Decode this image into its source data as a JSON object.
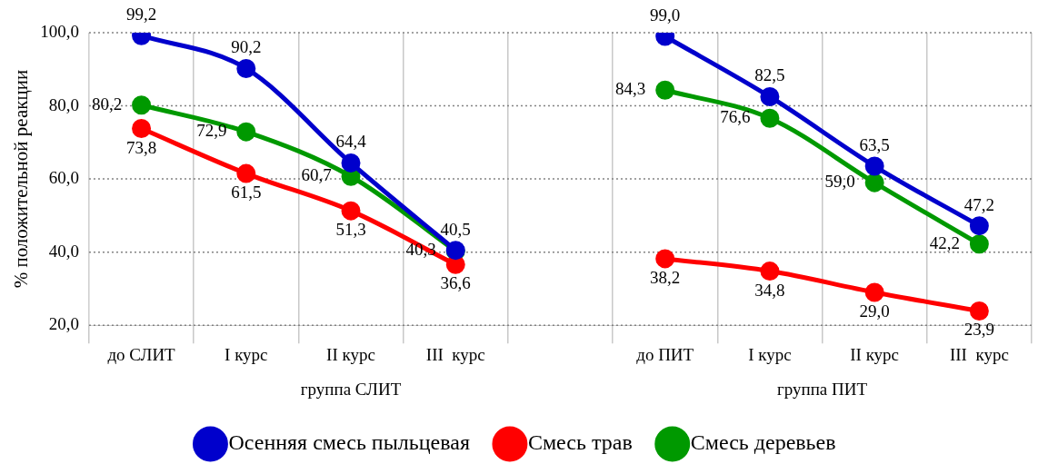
{
  "chart_data": {
    "type": "line",
    "ylabel": "% положительной реакции",
    "categories": [
      "до СЛИТ",
      "I курс",
      "II курс",
      "III  курс",
      null,
      "до ПИТ",
      "I курс",
      "II курс",
      "III  курс"
    ],
    "series": [
      {
        "name": "Осенняя смесь пыльцевая",
        "color": "#0000cc",
        "values": [
          99.2,
          90.2,
          64.4,
          40.5,
          null,
          99.0,
          82.5,
          63.5,
          47.2
        ],
        "value_labels": [
          "99,2",
          "90,2",
          "64,4",
          "40,5",
          null,
          "99,0",
          "82,5",
          "63,5",
          "47,2"
        ]
      },
      {
        "name": "Смесь трав",
        "color": "#ff0000",
        "values": [
          73.8,
          61.5,
          51.3,
          36.6,
          null,
          38.2,
          34.8,
          29.0,
          23.9
        ],
        "value_labels": [
          "73,8",
          "61,5",
          "51,3",
          "36,6",
          null,
          "38,2",
          "34,8",
          "29,0",
          "23,9"
        ]
      },
      {
        "name": "Смесь деревьев",
        "color": "#009900",
        "values": [
          80.2,
          72.9,
          60.7,
          40.3,
          null,
          84.3,
          76.6,
          59.0,
          42.2
        ],
        "value_labels": [
          "80,2",
          "72,9",
          "60,7",
          "40,3",
          null,
          "84,3",
          "76,6",
          "59,0",
          "42,2"
        ]
      }
    ],
    "ylim": [
      20,
      100
    ],
    "yticks": [
      {
        "value": 20,
        "label": "20,0"
      },
      {
        "value": 40,
        "label": "40,0"
      },
      {
        "value": 60,
        "label": "60,0"
      },
      {
        "value": 80,
        "label": "80,0"
      },
      {
        "value": 100,
        "label": "100,0"
      }
    ],
    "annotations": [
      "группа СЛИТ",
      "группа ПИТ"
    ],
    "grid": true,
    "legend": "bottom",
    "marker": "circle",
    "line_style": "solid"
  }
}
